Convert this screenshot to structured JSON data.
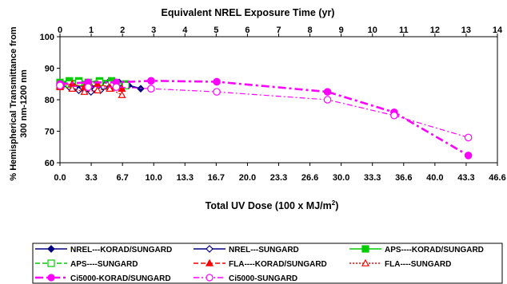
{
  "chart_data": {
    "type": "line",
    "top_axis_title": "Equivalent  NREL Exposure Time (yr)",
    "top_ticks": [
      "0",
      "1",
      "2",
      "3",
      "4",
      "5",
      "6",
      "7",
      "8",
      "9",
      "10",
      "11",
      "12",
      "13",
      "14"
    ],
    "xlabel_main": "Total UV Dose  (100 x MJ/m",
    "xlabel_sup": "2",
    "xlabel_end": ")",
    "ylabel_line1": "% Hemispherical Transmittance from",
    "ylabel_line2": "300 nm-1200 nm",
    "x_ticks": [
      "0.0",
      "3.3",
      "6.7",
      "10.0",
      "13.3",
      "16.7",
      "20.0",
      "23.3",
      "26.6",
      "30.0",
      "33.3",
      "36.6",
      "40.0",
      "43.3",
      "46.6"
    ],
    "y_ticks": [
      "60",
      "70",
      "80",
      "90",
      "100"
    ],
    "xlim": [
      0,
      46.6
    ],
    "ylim": [
      60,
      100
    ],
    "grid": false,
    "legend_position": "bottom",
    "series": [
      {
        "name": "NREL---KORAD/SUNGARD",
        "color": "#000080",
        "dash": "solid",
        "marker": "diamond-filled",
        "x": [
          0.0,
          1.0,
          2.0,
          3.3,
          4.3,
          5.3,
          6.3,
          7.3,
          8.6
        ],
        "y": [
          85.0,
          85.5,
          84.5,
          84.0,
          85.0,
          86.0,
          85.5,
          84.5,
          83.5
        ]
      },
      {
        "name": "NREL---SUNGARD",
        "color": "#000080",
        "dash": "solid",
        "marker": "diamond-open",
        "x": [
          0.0,
          1.0,
          2.0,
          3.3,
          4.3,
          5.3,
          6.3
        ],
        "y": [
          84.5,
          84.0,
          83.0,
          82.5,
          83.0,
          84.0,
          85.0
        ]
      },
      {
        "name": "APS----KORAD/SUNGARD",
        "color": "#00cc00",
        "dash": "solid",
        "marker": "square-filled",
        "x": [
          0.0,
          1.0,
          2.0,
          3.0,
          4.2,
          5.5,
          7.0
        ],
        "y": [
          85.5,
          86.0,
          86.0,
          85.5,
          86.0,
          86.0,
          85.0
        ]
      },
      {
        "name": "APS----SUNGARD",
        "color": "#00cc00",
        "dash": "dash",
        "marker": "square-open",
        "x": [
          0.0,
          1.0,
          2.0,
          3.0,
          4.2,
          5.5,
          7.0
        ],
        "y": [
          84.5,
          85.0,
          85.5,
          84.5,
          85.5,
          85.0,
          84.5
        ]
      },
      {
        "name": "FLA----KORAD/SUNGARD",
        "color": "#ff0000",
        "dash": "dash",
        "marker": "triangle-filled",
        "x": [
          0.0,
          1.3,
          2.6,
          4.0,
          5.3,
          6.6
        ],
        "y": [
          84.5,
          85.0,
          84.0,
          85.0,
          84.0,
          83.5
        ]
      },
      {
        "name": "FLA----SUNGARD",
        "color": "#ff0000",
        "dash": "dot",
        "marker": "triangle-open",
        "x": [
          0.0,
          1.3,
          2.6,
          4.0,
          5.3,
          6.6
        ],
        "y": [
          84.0,
          83.5,
          82.5,
          83.0,
          83.5,
          81.5
        ]
      },
      {
        "name": "Ci5000-KORAD/SUNGARD",
        "color": "#ff00ff",
        "dash": "dashdot",
        "marker": "circle-filled",
        "x": [
          0.0,
          3.0,
          6.0,
          9.7,
          16.7,
          28.5,
          35.6,
          43.5
        ],
        "y": [
          85.0,
          85.5,
          85.5,
          86.0,
          85.7,
          82.5,
          76.0,
          62.3
        ]
      },
      {
        "name": "Ci5000-SUNGARD",
        "color": "#ff00ff",
        "dash": "dashdot-thin",
        "marker": "circle-open",
        "x": [
          0.0,
          3.0,
          6.0,
          9.7,
          16.7,
          28.5,
          35.6,
          43.5
        ],
        "y": [
          84.5,
          84.0,
          84.0,
          83.5,
          82.5,
          80.0,
          75.0,
          68.0
        ]
      }
    ]
  }
}
